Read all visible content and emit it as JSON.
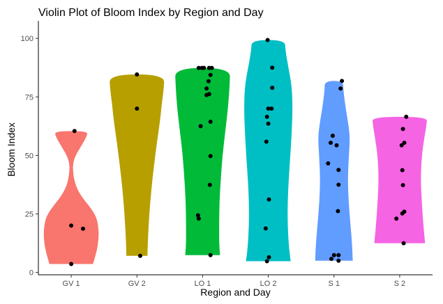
{
  "chart_data": {
    "type": "violin",
    "title": "Violin Plot of Bloom Index by Region and Day",
    "xlabel": "Region and Day",
    "ylabel": "Bloom Index",
    "ylim": [
      -1,
      106
    ],
    "yticks": [
      0,
      25,
      50,
      75,
      100
    ],
    "grid": false,
    "legend": "none",
    "categories": [
      "GV 1",
      "GV 2",
      "LO 1",
      "LO 2",
      "S 1",
      "S 2"
    ],
    "colors": [
      "#F8766D",
      "#B79F00",
      "#00BA38",
      "#00BFC4",
      "#619CFF",
      "#F564E3"
    ],
    "series": [
      {
        "values": [
          3.6,
          60.4,
          20.0,
          18.7
        ],
        "profile": [
          [
            3.6,
            0.79
          ],
          [
            8,
            0.9
          ],
          [
            12,
            0.97
          ],
          [
            16,
            1.0
          ],
          [
            20,
            0.98
          ],
          [
            24,
            0.9
          ],
          [
            28,
            0.68
          ],
          [
            32,
            0.4
          ],
          [
            36,
            0.2
          ],
          [
            40,
            0.1
          ],
          [
            44,
            0.06
          ],
          [
            47,
            0.07
          ],
          [
            50,
            0.16
          ],
          [
            54,
            0.36
          ],
          [
            58,
            0.56
          ],
          [
            60.4,
            0.6
          ]
        ]
      },
      {
        "values": [
          84.6,
          70.0,
          7.1
        ],
        "profile": [
          [
            7.1,
            0.38
          ],
          [
            15,
            0.4
          ],
          [
            25,
            0.45
          ],
          [
            35,
            0.52
          ],
          [
            45,
            0.61
          ],
          [
            55,
            0.72
          ],
          [
            65,
            0.84
          ],
          [
            72,
            0.9
          ],
          [
            78,
            0.97
          ],
          [
            84.6,
            1.0
          ]
        ]
      },
      {
        "values": [
          87.4,
          87.4,
          87.4,
          87.4,
          87.4,
          84.4,
          81.7,
          78.6,
          76.2,
          75.8,
          64.4,
          62.5,
          49.7,
          37.4,
          24.4,
          23.0,
          7.4
        ],
        "profile": [
          [
            7.4,
            0.63
          ],
          [
            12,
            0.6
          ],
          [
            20,
            0.6
          ],
          [
            30,
            0.61
          ],
          [
            40,
            0.66
          ],
          [
            50,
            0.72
          ],
          [
            60,
            0.82
          ],
          [
            70,
            0.92
          ],
          [
            80,
            0.98
          ],
          [
            87.4,
            1.0
          ]
        ]
      },
      {
        "values": [
          99.3,
          87.5,
          78.9,
          70.0,
          70.0,
          66.5,
          63.6,
          55.9,
          31.2,
          18.8,
          6.5,
          4.8
        ],
        "profile": [
          [
            4.8,
            0.81
          ],
          [
            10,
            0.75
          ],
          [
            20,
            0.7
          ],
          [
            30,
            0.7
          ],
          [
            40,
            0.74
          ],
          [
            50,
            0.8
          ],
          [
            60,
            0.85
          ],
          [
            70,
            0.88
          ],
          [
            80,
            0.85
          ],
          [
            88,
            0.72
          ],
          [
            95,
            0.62
          ],
          [
            99.3,
            0.6
          ]
        ]
      },
      {
        "values": [
          81.8,
          78.6,
          58.4,
          55.4,
          54.3,
          46.6,
          43.8,
          37.5,
          26.2,
          7.4,
          7.4,
          5.8,
          5.0
        ],
        "profile": [
          [
            5.0,
            0.68
          ],
          [
            10,
            0.67
          ],
          [
            20,
            0.6
          ],
          [
            30,
            0.53
          ],
          [
            40,
            0.5
          ],
          [
            50,
            0.54
          ],
          [
            58,
            0.58
          ],
          [
            65,
            0.5
          ],
          [
            72,
            0.4
          ],
          [
            78,
            0.34
          ],
          [
            81.8,
            0.33
          ]
        ]
      },
      {
        "values": [
          66.5,
          61.3,
          55.4,
          54.3,
          43.7,
          37.3,
          26.0,
          25.2,
          23.0,
          12.5
        ],
        "profile": [
          [
            12.5,
            0.92
          ],
          [
            20,
            0.86
          ],
          [
            30,
            0.8
          ],
          [
            40,
            0.76
          ],
          [
            50,
            0.8
          ],
          [
            58,
            0.9
          ],
          [
            63,
            0.97
          ],
          [
            66.5,
            1.0
          ]
        ]
      }
    ],
    "jitter": [
      [
        0.0,
        0.05,
        0.0,
        0.18
      ],
      [
        0.0,
        0.0,
        0.05
      ],
      [
        -0.06,
        0.02,
        0.1,
        0.14,
        -0.01,
        0.12,
        0.09,
        0.06,
        0.1,
        0.06,
        0.12,
        -0.03,
        0.12,
        0.11,
        -0.07,
        -0.06,
        0.12
      ],
      [
        -0.01,
        0.06,
        0.06,
        0.0,
        0.05,
        -0.02,
        0.0,
        -0.03,
        0.01,
        -0.04,
        0.01,
        -0.02
      ],
      [
        0.12,
        0.1,
        -0.02,
        -0.05,
        0.04,
        -0.09,
        0.07,
        0.07,
        0.06,
        0.07,
        0.0,
        -0.04,
        0.07
      ],
      [
        0.1,
        0.05,
        0.07,
        0.03,
        0.04,
        0.05,
        0.07,
        0.04,
        -0.05,
        0.06
      ]
    ]
  }
}
